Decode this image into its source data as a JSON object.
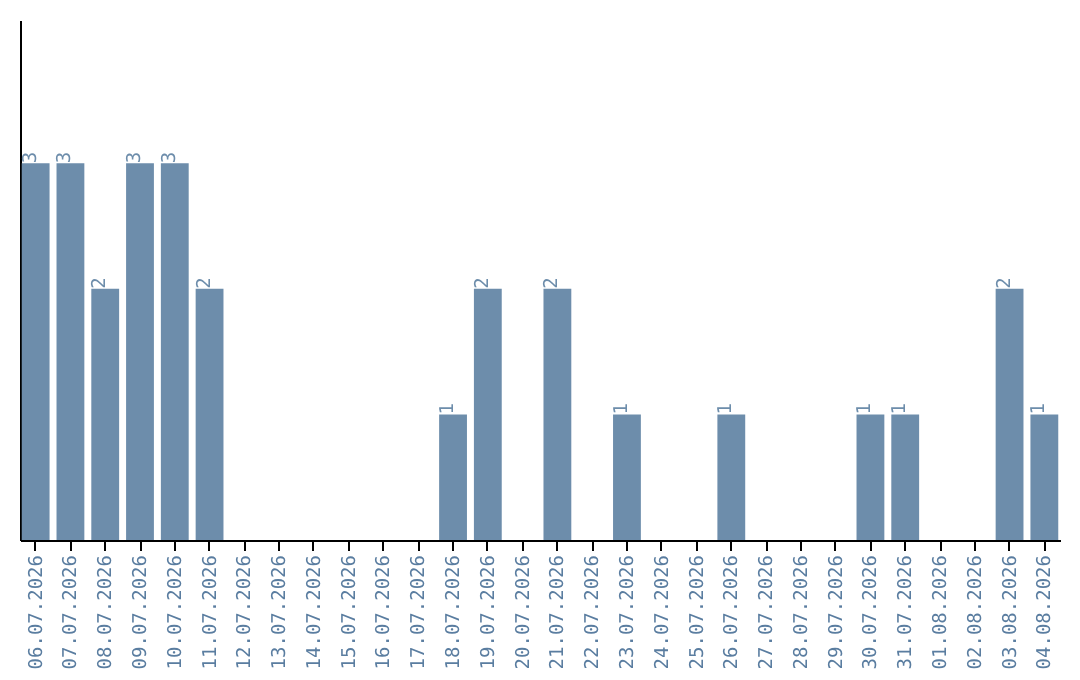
{
  "chart_data": {
    "type": "bar",
    "categories": [
      "06.07.2026",
      "07.07.2026",
      "08.07.2026",
      "09.07.2026",
      "10.07.2026",
      "11.07.2026",
      "12.07.2026",
      "13.07.2026",
      "14.07.2026",
      "15.07.2026",
      "16.07.2026",
      "17.07.2026",
      "18.07.2026",
      "19.07.2026",
      "20.07.2026",
      "21.07.2026",
      "22.07.2026",
      "23.07.2026",
      "24.07.2026",
      "25.07.2026",
      "26.07.2026",
      "27.07.2026",
      "28.07.2026",
      "29.07.2026",
      "30.07.2026",
      "31.07.2026",
      "01.08.2026",
      "02.08.2026",
      "03.08.2026",
      "04.08.2026"
    ],
    "values": [
      3,
      3,
      2,
      3,
      3,
      2,
      0,
      0,
      0,
      0,
      0,
      0,
      1,
      2,
      0,
      2,
      0,
      1,
      0,
      0,
      1,
      0,
      0,
      0,
      1,
      1,
      0,
      0,
      2,
      1
    ],
    "value_labels": [
      "3",
      "3",
      "2",
      "3",
      "3",
      "2",
      null,
      null,
      null,
      null,
      null,
      null,
      "1",
      "2",
      null,
      "2",
      null,
      "1",
      null,
      null,
      "1",
      null,
      null,
      null,
      "1",
      "1",
      null,
      null,
      "2",
      "1"
    ],
    "color": "#6d8dab",
    "tick_labels": "x"
  }
}
